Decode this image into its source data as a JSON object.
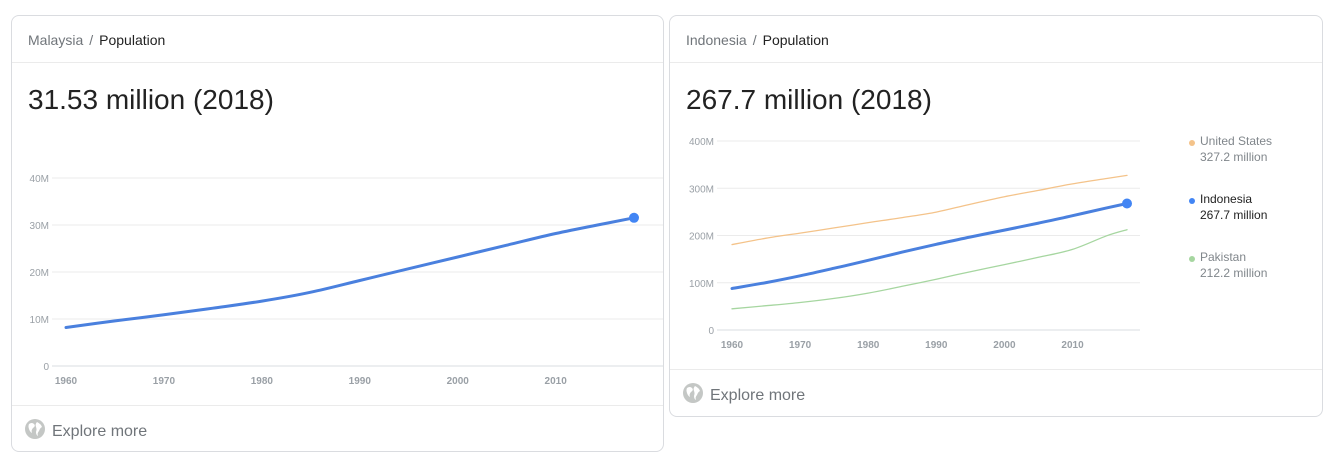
{
  "cards": [
    {
      "breadcrumb": {
        "country": "Malaysia",
        "separator": "/",
        "metric": "Population"
      },
      "headline": "31.53 million (2018)",
      "explore_label": "Explore more"
    },
    {
      "breadcrumb": {
        "country": "Indonesia",
        "separator": "/",
        "metric": "Population"
      },
      "headline": "267.7 million (2018)",
      "explore_label": "Explore more",
      "legend": [
        {
          "name": "United States",
          "value": "327.2 million",
          "color": "#f4c38a"
        },
        {
          "name": "Indonesia",
          "value": "267.7 million",
          "color": "#4285f4"
        },
        {
          "name": "Pakistan",
          "value": "212.2 million",
          "color": "#a6d6a0"
        }
      ]
    }
  ],
  "chart_data": [
    {
      "type": "line",
      "title": "",
      "xlabel": "",
      "ylabel": "",
      "xlim": [
        1960,
        2018
      ],
      "ylim": [
        0,
        40
      ],
      "x_ticks": [
        1960,
        1970,
        1980,
        1990,
        2000,
        2010
      ],
      "y_ticks": [
        {
          "v": 0,
          "label": "0"
        },
        {
          "v": 10,
          "label": "10M"
        },
        {
          "v": 20,
          "label": "20M"
        },
        {
          "v": 30,
          "label": "30M"
        },
        {
          "v": 40,
          "label": "40M"
        }
      ],
      "grid": true,
      "series": [
        {
          "name": "Malaysia",
          "color": "#4a80de",
          "x": [
            1960,
            1965,
            1970,
            1975,
            1980,
            1985,
            1990,
            1995,
            2000,
            2005,
            2010,
            2015,
            2018
          ],
          "y": [
            8.2,
            9.6,
            10.9,
            12.3,
            13.8,
            15.7,
            18.2,
            20.7,
            23.2,
            25.7,
            28.2,
            30.3,
            31.53
          ]
        }
      ]
    },
    {
      "type": "line",
      "title": "",
      "xlabel": "",
      "ylabel": "",
      "xlim": [
        1960,
        2018
      ],
      "ylim": [
        0,
        400
      ],
      "x_ticks": [
        1960,
        1970,
        1980,
        1990,
        2000,
        2010
      ],
      "y_ticks": [
        {
          "v": 0,
          "label": "0"
        },
        {
          "v": 100,
          "label": "100M"
        },
        {
          "v": 200,
          "label": "200M"
        },
        {
          "v": 300,
          "label": "300M"
        },
        {
          "v": 400,
          "label": "400M"
        }
      ],
      "grid": true,
      "legend_position": "right",
      "series": [
        {
          "name": "United States",
          "color": "#f4c38a",
          "x": [
            1960,
            1965,
            1970,
            1975,
            1980,
            1985,
            1990,
            1995,
            2000,
            2005,
            2010,
            2015,
            2018
          ],
          "y": [
            180.7,
            194.3,
            205.1,
            216.0,
            227.2,
            237.9,
            249.6,
            266.3,
            282.2,
            295.5,
            309.3,
            320.7,
            327.2
          ]
        },
        {
          "name": "Indonesia",
          "color": "#4a80de",
          "x": [
            1960,
            1965,
            1970,
            1975,
            1980,
            1985,
            1990,
            1995,
            2000,
            2005,
            2010,
            2015,
            2018
          ],
          "y": [
            87.8,
            100.3,
            114.8,
            130.7,
            147.5,
            164.9,
            181.4,
            196.9,
            211.5,
            226.3,
            241.8,
            258.4,
            267.7
          ]
        },
        {
          "name": "Pakistan",
          "color": "#a6d6a0",
          "x": [
            1960,
            1965,
            1970,
            1975,
            1980,
            1985,
            1990,
            1995,
            2000,
            2005,
            2010,
            2015,
            2018
          ],
          "y": [
            44.9,
            51.4,
            58.1,
            66.8,
            78.1,
            92.4,
            107.6,
            123.4,
            138.5,
            153.9,
            170.6,
            199.4,
            212.2
          ]
        }
      ]
    }
  ]
}
